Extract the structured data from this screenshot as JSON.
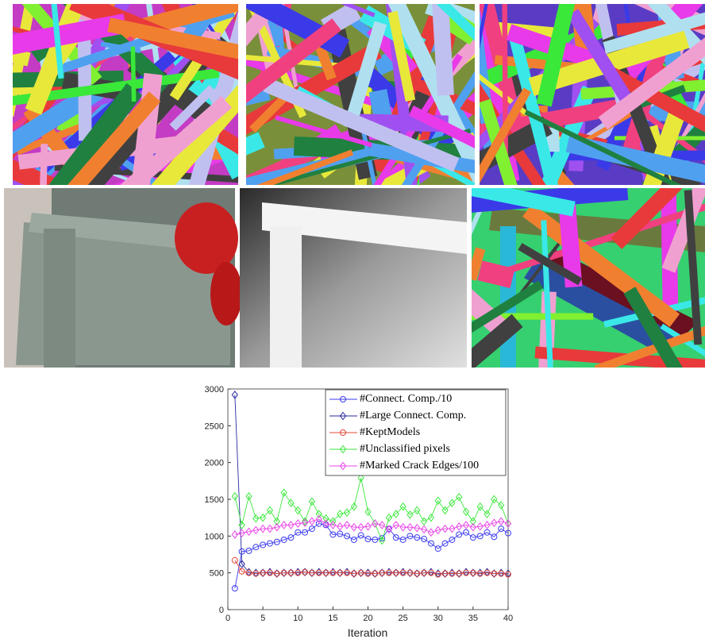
{
  "chart_data": {
    "type": "line",
    "xlabel": "Iteration",
    "xlim": [
      0,
      40
    ],
    "xticks": [
      0,
      5,
      10,
      15,
      20,
      25,
      30,
      35,
      40
    ],
    "ylim": [
      0,
      3000
    ],
    "yticks": [
      0,
      500,
      1000,
      1500,
      2000,
      2500,
      3000
    ],
    "grid": false,
    "legend": "upper right",
    "x": [
      1,
      2,
      3,
      4,
      5,
      6,
      7,
      8,
      9,
      10,
      11,
      12,
      13,
      14,
      15,
      16,
      17,
      18,
      19,
      20,
      21,
      22,
      23,
      24,
      25,
      26,
      27,
      28,
      29,
      30,
      31,
      32,
      33,
      34,
      35,
      36,
      37,
      38,
      39,
      40
    ],
    "series": [
      {
        "name": "#Connect. Comp./10",
        "color": "#3b3bf0",
        "marker": "circle",
        "values": [
          290,
          790,
          800,
          850,
          880,
          900,
          920,
          950,
          980,
          1050,
          1050,
          1100,
          1170,
          1150,
          1020,
          1030,
          1000,
          950,
          1010,
          960,
          950,
          970,
          1100,
          980,
          950,
          1000,
          980,
          960,
          900,
          830,
          900,
          950,
          1020,
          1050,
          980,
          1000,
          1050,
          990,
          1100,
          1040
        ]
      },
      {
        "name": "#Large Connect. Comp.",
        "color": "#2a2aa0",
        "marker": "diamond",
        "values": [
          2920,
          620,
          510,
          500,
          500,
          510,
          490,
          500,
          500,
          510,
          510,
          500,
          510,
          500,
          510,
          500,
          510,
          490,
          500,
          500,
          490,
          500,
          510,
          500,
          510,
          500,
          490,
          500,
          510,
          490,
          490,
          500,
          490,
          510,
          500,
          500,
          510,
          490,
          500,
          490
        ]
      },
      {
        "name": "#KeptModels",
        "color": "#e0483a",
        "marker": "circle",
        "values": [
          670,
          520,
          500,
          490,
          500,
          500,
          490,
          500,
          500,
          500,
          510,
          500,
          500,
          500,
          500,
          500,
          500,
          490,
          500,
          490,
          490,
          500,
          500,
          500,
          500,
          500,
          490,
          500,
          500,
          480,
          490,
          490,
          490,
          500,
          500,
          490,
          500,
          490,
          490,
          480
        ]
      },
      {
        "name": "#Unclassified pixels",
        "color": "#3ee83e",
        "marker": "diamond",
        "values": [
          1540,
          1150,
          1540,
          1240,
          1250,
          1350,
          1200,
          1590,
          1450,
          1350,
          1200,
          1470,
          1300,
          1240,
          1200,
          1300,
          1320,
          1400,
          1790,
          1330,
          1170,
          940,
          1250,
          1300,
          1400,
          1290,
          1350,
          1200,
          1250,
          1480,
          1350,
          1450,
          1530,
          1330,
          1200,
          1400,
          1300,
          1500,
          1420,
          1170
        ]
      },
      {
        "name": "#Marked Crack Edges/100",
        "color": "#e845e8",
        "marker": "diamond",
        "values": [
          1020,
          1040,
          1060,
          1080,
          1100,
          1100,
          1120,
          1150,
          1150,
          1170,
          1180,
          1200,
          1230,
          1170,
          1150,
          1130,
          1150,
          1120,
          1120,
          1130,
          1170,
          1150,
          1090,
          1150,
          1120,
          1120,
          1110,
          1090,
          1050,
          1080,
          1100,
          1100,
          1130,
          1150,
          1120,
          1130,
          1150,
          1180,
          1200,
          1170
        ]
      }
    ]
  }
}
